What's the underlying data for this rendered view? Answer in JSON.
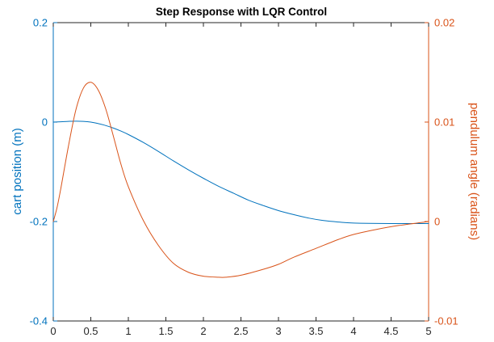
{
  "chart_data": {
    "type": "line",
    "title": "Step Response with LQR Control",
    "xlabel": "",
    "ylabel_left": "cart position (m)",
    "ylabel_right": "pendulum angle (radians)",
    "xlim": [
      0,
      5
    ],
    "ylim_left": [
      -0.4,
      0.2
    ],
    "ylim_right": [
      -0.01,
      0.02
    ],
    "x_ticks": [
      {
        "value": 0,
        "label": "0"
      },
      {
        "value": 0.5,
        "label": "0.5"
      },
      {
        "value": 1,
        "label": "1"
      },
      {
        "value": 1.5,
        "label": "1.5"
      },
      {
        "value": 2,
        "label": "2"
      },
      {
        "value": 2.5,
        "label": "2.5"
      },
      {
        "value": 3,
        "label": "3"
      },
      {
        "value": 3.5,
        "label": "3.5"
      },
      {
        "value": 4,
        "label": "4"
      },
      {
        "value": 4.5,
        "label": "4.5"
      },
      {
        "value": 5,
        "label": "5"
      }
    ],
    "y_left_ticks": [
      {
        "value": 0.2,
        "label": "0.2"
      },
      {
        "value": 0,
        "label": "0"
      },
      {
        "value": -0.2,
        "label": "-0.2"
      },
      {
        "value": -0.4,
        "label": "-0.4"
      }
    ],
    "y_right_ticks": [
      {
        "value": 0.02,
        "label": "0.02"
      },
      {
        "value": 0.01,
        "label": "0.01"
      },
      {
        "value": 0,
        "label": "0"
      },
      {
        "value": -0.01,
        "label": "-0.01"
      }
    ],
    "grid": false,
    "series": [
      {
        "axis": "left",
        "color": "#0072BD",
        "x": [
          0,
          0.1,
          0.2,
          0.3,
          0.4,
          0.5,
          0.6,
          0.7,
          0.8,
          0.9,
          1.0,
          1.2,
          1.4,
          1.6,
          1.8,
          2.0,
          2.2,
          2.4,
          2.6,
          2.8,
          3.0,
          3.2,
          3.4,
          3.6,
          3.8,
          4.0,
          4.5,
          5.0
        ],
        "y": [
          0,
          0.0006,
          0.0014,
          0.0019,
          0.0015,
          0,
          -0.003,
          -0.007,
          -0.012,
          -0.018,
          -0.025,
          -0.041,
          -0.059,
          -0.078,
          -0.096,
          -0.113,
          -0.129,
          -0.143,
          -0.157,
          -0.168,
          -0.178,
          -0.186,
          -0.193,
          -0.198,
          -0.201,
          -0.203,
          -0.204,
          -0.204
        ]
      },
      {
        "axis": "right",
        "color": "#D95319",
        "x": [
          0,
          0.05,
          0.1,
          0.2,
          0.3,
          0.4,
          0.5,
          0.6,
          0.7,
          0.8,
          0.9,
          1.0,
          1.2,
          1.4,
          1.6,
          1.8,
          2.0,
          2.2,
          2.3,
          2.5,
          2.8,
          3.0,
          3.2,
          3.5,
          3.8,
          4.0,
          4.3,
          4.6,
          5.0
        ],
        "y": [
          0,
          0.0014,
          0.0033,
          0.0075,
          0.0112,
          0.0134,
          0.014,
          0.0132,
          0.0113,
          0.0086,
          0.0058,
          0.0035,
          0.0001,
          -0.0024,
          -0.0042,
          -0.0051,
          -0.0055,
          -0.0056,
          -0.0056,
          -0.0054,
          -0.0048,
          -0.0043,
          -0.0036,
          -0.0027,
          -0.0018,
          -0.0013,
          -0.0008,
          -0.0004,
          0
        ]
      }
    ]
  }
}
